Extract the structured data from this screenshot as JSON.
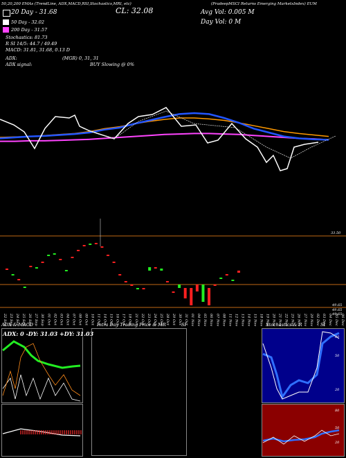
{
  "header": {
    "top_text": "(PradeepMSCI Returns Emerging MarketsIndex) EUM",
    "top_prefix": "50,20,200 EMAs (TrendLine, ADX,MACD,RSI,Stochastics,MRI, etc)",
    "close_label": "CL: 32.08",
    "avg_vol": "Avg Vol: 0.005 M",
    "day_vol": "Day Vol: 0  M",
    "ema20": "20  Day  - 31.68",
    "ema50": "50  Day  - 32.02",
    "ema200": "200  Day  - 31.57",
    "stoch": "Stochastics: 81.73",
    "rsi_line": "R                 SI 14/5: 44.7 / 49.49",
    "macd": "MACD: 31.81, 31.68, 0.13 D",
    "adx": "ADX:",
    "adx_signal": "ADX  signal:",
    "mri": "(MGR) 0,  31,  31",
    "buy": "BUY Slowing @ 0%",
    "colors": {
      "ema20": "#ffffff",
      "ema50": "#ff9900",
      "ema200": "#ff44ff",
      "blue": "#2255ff"
    }
  },
  "chart_data": {
    "type": "line",
    "title": "",
    "price_levels": {
      "top": "33.50",
      "bottom1": "49.65",
      "bottom2": "49.65",
      "bottom3": "49.65"
    },
    "x_labels": [
      "22 Sep",
      "23 Sep",
      "24 Sep",
      "25 Sep",
      "26 Sep",
      "27 Sep",
      "30 Sep",
      "01 Oct",
      "02 Oct",
      "03 Oct",
      "04 Oct",
      "07 Oct",
      "08 Oct",
      "09 Oct",
      "10 Oct",
      "11 Oct",
      "14 Oct",
      "15 Oct",
      "16 Oct",
      "17 Oct",
      "18 Oct",
      "21 Oct",
      "22 Oct",
      "23 Oct",
      "24 Oct",
      "25 Oct",
      "28 Oct",
      "29 Oct",
      "30 Oct",
      "31 Oct",
      "01 Nov",
      "04 Nov",
      "05 Nov",
      "06 Nov",
      "07 Nov",
      "08 Nov",
      "11 Nov",
      "12 Nov",
      "13 Nov",
      "14 Nov",
      "15 Nov",
      "18 Nov",
      "19 Nov",
      "20 Nov",
      "21 Nov",
      "22 Nov",
      "25 Nov",
      "26 Nov",
      "27 Nov",
      "29 Nov",
      "02 Dec",
      "03 Dec",
      "04 Dec",
      "05 Dec",
      "06 Dec"
    ],
    "ema_lines": {
      "blue": [
        0.18,
        0.2,
        0.22,
        0.23,
        0.25,
        0.27,
        0.3,
        0.36,
        0.4,
        0.48,
        0.55,
        0.62,
        0.68,
        0.7,
        0.68,
        0.6,
        0.5,
        0.38,
        0.3,
        0.22,
        0.18,
        0.16,
        0.15
      ],
      "orange": [
        0.2,
        0.21,
        0.22,
        0.24,
        0.26,
        0.28,
        0.32,
        0.38,
        0.42,
        0.48,
        0.53,
        0.57,
        0.6,
        0.6,
        0.58,
        0.55,
        0.5,
        0.44,
        0.38,
        0.32,
        0.28,
        0.25,
        0.22
      ],
      "pink": [
        0.12,
        0.12,
        0.13,
        0.13,
        0.14,
        0.15,
        0.16,
        0.18,
        0.2,
        0.22,
        0.24,
        0.26,
        0.27,
        0.28,
        0.28,
        0.27,
        0.26,
        0.24,
        0.22,
        0.2,
        0.18,
        0.17,
        0.15
      ]
    },
    "candles": [
      {
        "o": 0.58,
        "c": 0.58,
        "color": "red"
      },
      {
        "o": 0.5,
        "c": 0.5,
        "color": "green"
      },
      {
        "o": 0.43,
        "c": 0.43,
        "color": "red"
      },
      {
        "o": 0.32,
        "c": 0.32,
        "color": "green"
      },
      {
        "o": 0.62,
        "c": 0.62,
        "color": "red"
      },
      {
        "o": 0.6,
        "c": 0.6,
        "color": "green"
      },
      {
        "o": 0.68,
        "c": 0.68,
        "color": "red"
      },
      {
        "o": 0.78,
        "c": 0.78,
        "color": "green"
      },
      {
        "o": 0.8,
        "c": 0.8,
        "color": "green"
      },
      {
        "o": 0.72,
        "c": 0.72,
        "color": "red"
      },
      {
        "o": 0.56,
        "c": 0.56,
        "color": "green"
      },
      {
        "o": 0.75,
        "c": 0.75,
        "color": "red"
      },
      {
        "o": 0.85,
        "c": 0.85,
        "color": "red"
      },
      {
        "o": 0.92,
        "c": 0.92,
        "color": "red"
      },
      {
        "o": 0.94,
        "c": 0.94,
        "color": "green"
      },
      {
        "o": 0.95,
        "c": 0.95,
        "color": "red"
      },
      {
        "o": 0.9,
        "c": 0.9,
        "color": "red"
      },
      {
        "o": 0.78,
        "c": 0.78,
        "color": "red"
      },
      {
        "o": 0.68,
        "c": 0.68,
        "color": "red"
      },
      {
        "o": 0.5,
        "c": 0.5,
        "color": "red"
      },
      {
        "o": 0.4,
        "c": 0.4,
        "color": "red"
      },
      {
        "o": 0.35,
        "c": 0.35,
        "color": "red"
      },
      {
        "o": 0.3,
        "c": 0.3,
        "color": "green"
      },
      {
        "o": 0.3,
        "c": 0.3,
        "color": "red"
      },
      {
        "o": 0.55,
        "c": 0.6,
        "color": "green"
      },
      {
        "o": 0.6,
        "c": 0.6,
        "color": "red"
      },
      {
        "o": 0.55,
        "c": 0.58,
        "color": "green"
      },
      {
        "o": 0.4,
        "c": 0.4,
        "color": "red"
      },
      {
        "o": 0.25,
        "c": 0.25,
        "color": "red"
      },
      {
        "o": 0.3,
        "c": 0.35,
        "color": "green"
      },
      {
        "o": 0.3,
        "c": 0.15,
        "color": "red"
      },
      {
        "o": 0.3,
        "c": 0.05,
        "color": "red"
      },
      {
        "o": 0.35,
        "c": 0.25,
        "color": "red"
      },
      {
        "o": 0.1,
        "c": 0.35,
        "color": "green"
      },
      {
        "o": 0.05,
        "c": 0.3,
        "color": "red"
      },
      {
        "o": 0.35,
        "c": 0.35,
        "color": "red"
      },
      {
        "o": 0.45,
        "c": 0.45,
        "color": "green"
      },
      {
        "o": 0.5,
        "c": 0.5,
        "color": "red"
      },
      {
        "o": 0.42,
        "c": 0.42,
        "color": "green"
      },
      {
        "o": 0.52,
        "c": 0.55,
        "color": "red"
      }
    ]
  },
  "panels": {
    "adx_title": "ADX  & MACD",
    "adx_readout": "ADX: 0  -DY: 31.03 +DY: 31.03",
    "intraday_title": "Intra  Day Trading Price  & MR",
    "intraday_si": "SI",
    "stoch_title": "Stochastics & R",
    "stoch_si": "SI",
    "stoch_ticks": [
      "80",
      "50",
      "20"
    ],
    "rsi_ticks": [
      "80",
      "50",
      "20"
    ]
  }
}
